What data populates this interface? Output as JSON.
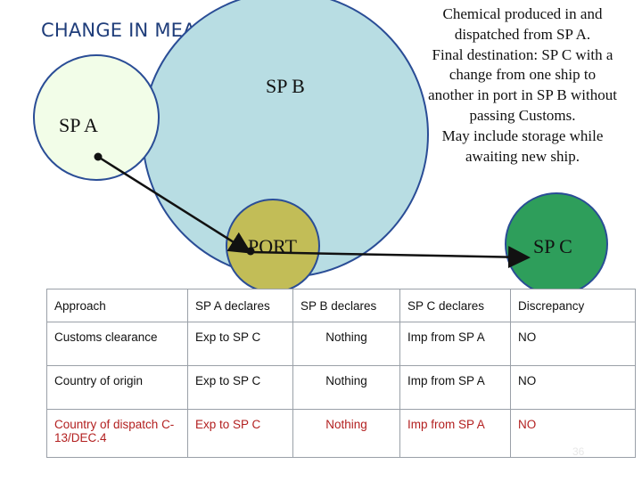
{
  "title": "CHANGE IN MEANS OF TRANSPORT",
  "note_lines": [
    "Chemical produced in and",
    "dispatched from SP A.",
    "Final destination: SP C with a",
    "change from one ship to",
    "another in port in SP B without",
    "passing Customs.",
    "May include storage while",
    "awaiting new ship."
  ],
  "circles": {
    "sp_a": "SP A",
    "sp_b": "SP B",
    "port": "PORT",
    "sp_c": "SP C"
  },
  "colors": {
    "title": "#1f3d7a",
    "sp_a_fill": "#f2fde8",
    "sp_b_fill": "#b8dde3",
    "port_fill": "#c2bd57",
    "sp_c_fill": "#2e9e5b",
    "circle_stroke": "#2a4d96",
    "discrepancy_row_text": "#b32020"
  },
  "table": {
    "headers": [
      "Approach",
      "SP A declares",
      "SP B declares",
      "SP C declares",
      "Discrepancy"
    ],
    "rows": [
      [
        "Customs clearance",
        "Exp to SP C",
        "Nothing",
        "Imp from SP A",
        "NO"
      ],
      [
        "Country of origin",
        "Exp to SP C",
        "Nothing",
        "Imp from SP A",
        "NO"
      ],
      [
        "Country of dispatch C-13/DEC.4",
        "Exp to SP C",
        "Nothing",
        "Imp from SP A",
        "NO"
      ]
    ]
  },
  "page_number": "36"
}
